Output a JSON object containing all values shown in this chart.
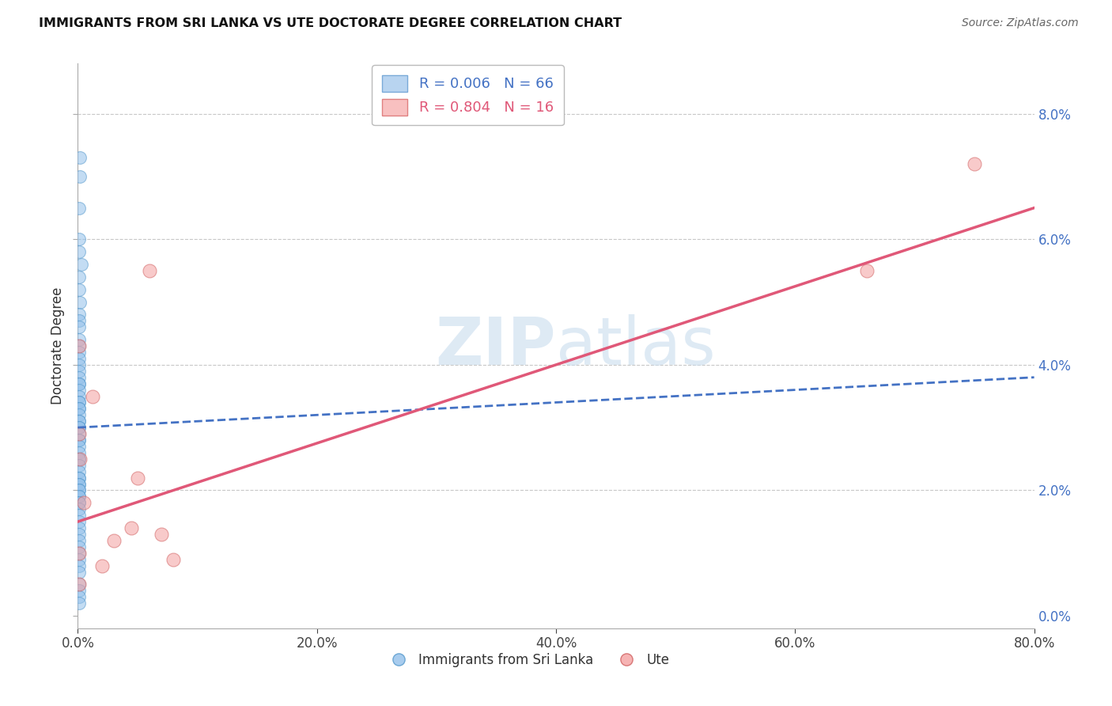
{
  "title": "IMMIGRANTS FROM SRI LANKA VS UTE DOCTORATE DEGREE CORRELATION CHART",
  "source": "Source: ZipAtlas.com",
  "ylabel": "Doctorate Degree",
  "xlim": [
    0,
    0.8
  ],
  "ylim": [
    -0.002,
    0.088
  ],
  "blue_R": "0.006",
  "blue_N": "66",
  "pink_R": "0.804",
  "pink_N": "16",
  "blue_color": "#92C0EA",
  "pink_color": "#F4A0A0",
  "trendline_blue_color": "#4472C4",
  "trendline_pink_color": "#E05878",
  "watermark_color": "#D8EEFF",
  "blue_points_x": [
    0.002,
    0.002,
    0.001,
    0.001,
    0.001,
    0.003,
    0.001,
    0.001,
    0.002,
    0.001,
    0.001,
    0.001,
    0.001,
    0.001,
    0.001,
    0.001,
    0.001,
    0.001,
    0.001,
    0.001,
    0.001,
    0.001,
    0.001,
    0.001,
    0.001,
    0.001,
    0.001,
    0.001,
    0.001,
    0.001,
    0.001,
    0.001,
    0.001,
    0.001,
    0.001,
    0.001,
    0.001,
    0.001,
    0.001,
    0.001,
    0.001,
    0.001,
    0.001,
    0.001,
    0.001,
    0.001,
    0.001,
    0.001,
    0.001,
    0.001,
    0.001,
    0.001,
    0.001,
    0.001,
    0.001,
    0.001,
    0.001,
    0.001,
    0.001,
    0.001,
    0.001,
    0.001,
    0.001,
    0.001,
    0.001,
    0.001
  ],
  "blue_points_y": [
    0.073,
    0.07,
    0.065,
    0.06,
    0.058,
    0.056,
    0.054,
    0.052,
    0.05,
    0.048,
    0.047,
    0.046,
    0.044,
    0.043,
    0.042,
    0.041,
    0.04,
    0.039,
    0.038,
    0.037,
    0.037,
    0.036,
    0.035,
    0.034,
    0.034,
    0.033,
    0.033,
    0.032,
    0.031,
    0.031,
    0.03,
    0.03,
    0.029,
    0.028,
    0.028,
    0.027,
    0.026,
    0.025,
    0.025,
    0.024,
    0.023,
    0.022,
    0.022,
    0.021,
    0.021,
    0.02,
    0.02,
    0.019,
    0.019,
    0.018,
    0.018,
    0.017,
    0.016,
    0.015,
    0.014,
    0.013,
    0.012,
    0.011,
    0.01,
    0.009,
    0.008,
    0.007,
    0.005,
    0.004,
    0.003,
    0.002
  ],
  "pink_points_x": [
    0.001,
    0.001,
    0.002,
    0.001,
    0.005,
    0.012,
    0.03,
    0.02,
    0.05,
    0.045,
    0.06,
    0.07,
    0.08,
    0.66,
    0.75,
    0.001
  ],
  "pink_points_y": [
    0.043,
    0.029,
    0.025,
    0.01,
    0.018,
    0.035,
    0.012,
    0.008,
    0.022,
    0.014,
    0.055,
    0.013,
    0.009,
    0.055,
    0.072,
    0.005
  ],
  "blue_trend_x": [
    0.0,
    0.8
  ],
  "blue_trend_y": [
    0.03,
    0.038
  ],
  "pink_trend_x": [
    0.0,
    0.8
  ],
  "pink_trend_y": [
    0.015,
    0.065
  ],
  "grid_color": "#C8C8C8",
  "bg_color": "#FFFFFF",
  "legend_box_color": "#CCDDFF",
  "legend_pink_box_color": "#FFCCCC"
}
